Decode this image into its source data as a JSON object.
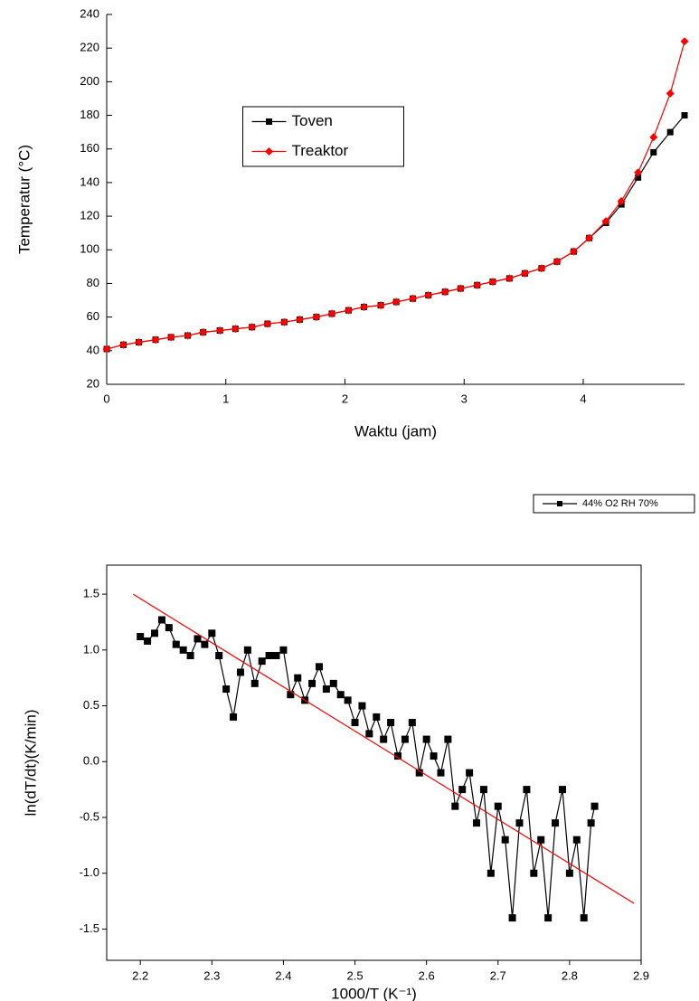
{
  "chart_data": [
    {
      "type": "line",
      "x_label": "Waktu (jam)",
      "y_label": "Temperatur (°C)",
      "xlim": [
        0,
        4.85
      ],
      "xticks": [
        0,
        1,
        2,
        3,
        4
      ],
      "ylim": [
        20,
        240
      ],
      "yticks": [
        20,
        40,
        60,
        80,
        100,
        120,
        140,
        160,
        180,
        200,
        220,
        240
      ],
      "legend": "upper center",
      "x": [
        0,
        0.14,
        0.27,
        0.41,
        0.54,
        0.68,
        0.81,
        0.95,
        1.08,
        1.22,
        1.35,
        1.49,
        1.62,
        1.76,
        1.89,
        2.03,
        2.16,
        2.3,
        2.43,
        2.57,
        2.7,
        2.84,
        2.97,
        3.11,
        3.24,
        3.38,
        3.51,
        3.65,
        3.78,
        3.92,
        4.05,
        4.19,
        4.32,
        4.46,
        4.59,
        4.73,
        4.85
      ],
      "series": [
        {
          "name": "Toven",
          "color": "#000000",
          "marker": "square",
          "values": [
            41,
            43.5,
            45,
            46.5,
            48,
            49,
            51,
            52,
            53,
            54,
            56,
            57,
            58.5,
            60,
            62,
            64,
            66,
            67,
            69,
            71,
            73,
            75,
            77,
            79,
            81,
            83,
            86,
            89,
            93,
            99,
            107,
            116,
            127,
            143,
            158,
            170,
            180
          ]
        },
        {
          "name": "Treaktor",
          "color": "#ff0000",
          "marker": "diamond",
          "values": [
            41,
            43.5,
            45,
            46.5,
            48,
            49,
            51,
            52,
            53,
            54,
            56,
            57,
            58.5,
            60,
            62,
            64,
            66,
            67,
            69,
            71,
            73,
            75,
            77,
            79,
            81,
            83,
            86,
            89,
            93,
            99,
            107,
            117,
            129,
            146,
            167,
            193,
            224
          ]
        }
      ]
    },
    {
      "type": "scatter",
      "x_label": "1000/T (K⁻¹)",
      "y_label": "ln(dT/dt)(K/min)",
      "xlim": [
        2.153,
        2.9
      ],
      "xticks": [
        2.2,
        2.3,
        2.4,
        2.5,
        2.6,
        2.7,
        2.8,
        2.9
      ],
      "ylim": [
        -1.78,
        1.76
      ],
      "yticks": [
        1.5,
        {
          "value": 1,
          "label": "1.0"
        },
        0.5,
        {
          "value": 0,
          "label": "0.0"
        },
        -0.5,
        {
          "value": -1,
          "label": "-1.0"
        },
        -1.5
      ],
      "legend": "outside upper right",
      "series": [
        {
          "name": "44% O2 RH 70%",
          "color": "#000000",
          "marker": "square",
          "connect": true,
          "x": [
            2.2,
            2.21,
            2.22,
            2.23,
            2.24,
            2.25,
            2.26,
            2.27,
            2.28,
            2.29,
            2.3,
            2.31,
            2.32,
            2.33,
            2.34,
            2.35,
            2.36,
            2.37,
            2.38,
            2.39,
            2.4,
            2.41,
            2.42,
            2.43,
            2.44,
            2.45,
            2.46,
            2.47,
            2.48,
            2.49,
            2.5,
            2.51,
            2.52,
            2.53,
            2.54,
            2.55,
            2.56,
            2.57,
            2.58,
            2.59,
            2.6,
            2.61,
            2.62,
            2.63,
            2.64,
            2.65,
            2.66,
            2.67,
            2.68,
            2.69,
            2.7,
            2.71,
            2.72,
            2.73,
            2.74,
            2.75,
            2.76,
            2.77,
            2.78,
            2.79,
            2.8,
            2.81,
            2.82,
            2.83,
            2.835
          ],
          "values": [
            1.12,
            1.08,
            1.15,
            1.27,
            1.2,
            1.05,
            1.0,
            0.95,
            1.1,
            1.05,
            1.15,
            0.95,
            0.65,
            0.4,
            0.8,
            1.0,
            0.7,
            0.9,
            0.95,
            0.95,
            1.0,
            0.6,
            0.75,
            0.55,
            0.7,
            0.85,
            0.65,
            0.7,
            0.6,
            0.55,
            0.35,
            0.5,
            0.25,
            0.4,
            0.2,
            0.35,
            0.05,
            0.2,
            0.35,
            -0.1,
            0.2,
            0.05,
            -0.1,
            0.2,
            -0.4,
            -0.25,
            -0.1,
            -0.55,
            -0.25,
            -1.0,
            -0.4,
            -0.7,
            -1.4,
            -0.55,
            -0.25,
            -1.0,
            -0.7,
            -1.4,
            -0.55,
            -0.25,
            -1.0,
            -0.7,
            -1.4,
            -0.55,
            -0.4
          ]
        },
        {
          "color": "#ff0000",
          "marker": "none",
          "connect": true,
          "x": [
            2.19,
            2.89
          ],
          "values": [
            1.5,
            -1.27
          ]
        }
      ]
    }
  ]
}
